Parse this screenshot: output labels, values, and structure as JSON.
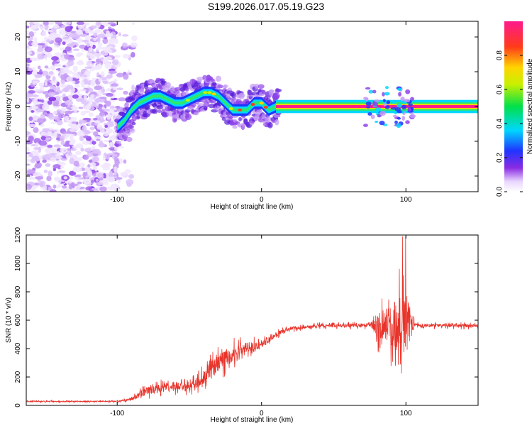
{
  "title": "S199.2026.017.05.19.G23",
  "chart_data": [
    {
      "type": "heatmap",
      "name": "spectrogram",
      "xlabel": "Height of straight line (km)",
      "ylabel": "Frequency (Hz)",
      "xlim": [
        -163,
        150
      ],
      "ylim": [
        -24.5,
        24.5
      ],
      "xticks": [
        -100,
        0,
        100
      ],
      "yticks": [
        -20,
        -10,
        0,
        10,
        20
      ],
      "colorbar": {
        "label": "Normalized spectral amplitude",
        "range": [
          0,
          1
        ],
        "ticks": [
          0.0,
          0.2,
          0.4,
          0.6,
          0.8
        ],
        "tick_labels": [
          "0.0",
          "0.2",
          "0.4",
          "0.6",
          "0.8"
        ]
      },
      "ridge": [
        {
          "x": -100,
          "y": -6
        },
        {
          "x": -95,
          "y": -4
        },
        {
          "x": -90,
          "y": -1
        },
        {
          "x": -85,
          "y": 1
        },
        {
          "x": -80,
          "y": 2
        },
        {
          "x": -75,
          "y": 3
        },
        {
          "x": -70,
          "y": 3
        },
        {
          "x": -65,
          "y": 2
        },
        {
          "x": -60,
          "y": 1
        },
        {
          "x": -55,
          "y": 1
        },
        {
          "x": -50,
          "y": 2
        },
        {
          "x": -45,
          "y": 3
        },
        {
          "x": -40,
          "y": 4
        },
        {
          "x": -35,
          "y": 4
        },
        {
          "x": -30,
          "y": 3
        },
        {
          "x": -25,
          "y": 1
        },
        {
          "x": -20,
          "y": -1
        },
        {
          "x": -15,
          "y": -1
        },
        {
          "x": -10,
          "y": -1
        },
        {
          "x": -5,
          "y": 1
        },
        {
          "x": 0,
          "y": 1
        },
        {
          "x": 5,
          "y": -1
        },
        {
          "x": 10,
          "y": 0
        },
        {
          "x": 150,
          "y": 0
        }
      ]
    },
    {
      "type": "line",
      "name": "snr",
      "xlabel": "Height of straight line (km)",
      "ylabel": "SNR (10 * v/v)",
      "xlim": [
        -163,
        150
      ],
      "ylim": [
        0,
        1200
      ],
      "xticks": [
        -100,
        0,
        100
      ],
      "yticks": [
        0,
        200,
        400,
        600,
        800,
        1000,
        1200
      ],
      "color": "#e8332a",
      "envelope": [
        {
          "x": -163,
          "base": 28,
          "noise": 8
        },
        {
          "x": -100,
          "base": 28,
          "noise": 8
        },
        {
          "x": -90,
          "base": 45,
          "noise": 20
        },
        {
          "x": -80,
          "base": 100,
          "noise": 60
        },
        {
          "x": -60,
          "base": 140,
          "noise": 70
        },
        {
          "x": -50,
          "base": 120,
          "noise": 60
        },
        {
          "x": -40,
          "base": 200,
          "noise": 110
        },
        {
          "x": -30,
          "base": 300,
          "noise": 140
        },
        {
          "x": -20,
          "base": 360,
          "noise": 120
        },
        {
          "x": -10,
          "base": 410,
          "noise": 80
        },
        {
          "x": 0,
          "base": 430,
          "noise": 60
        },
        {
          "x": 10,
          "base": 500,
          "noise": 40
        },
        {
          "x": 20,
          "base": 540,
          "noise": 25
        },
        {
          "x": 40,
          "base": 560,
          "noise": 25
        },
        {
          "x": 75,
          "base": 565,
          "noise": 30
        },
        {
          "x": 80,
          "base": 570,
          "noise": 180
        },
        {
          "x": 88,
          "base": 560,
          "noise": 300
        },
        {
          "x": 95,
          "base": 560,
          "noise": 430
        },
        {
          "x": 100,
          "base": 580,
          "noise": 560
        },
        {
          "x": 103,
          "base": 570,
          "noise": 250
        },
        {
          "x": 106,
          "base": 565,
          "noise": 25
        },
        {
          "x": 150,
          "base": 560,
          "noise": 25
        }
      ]
    }
  ]
}
